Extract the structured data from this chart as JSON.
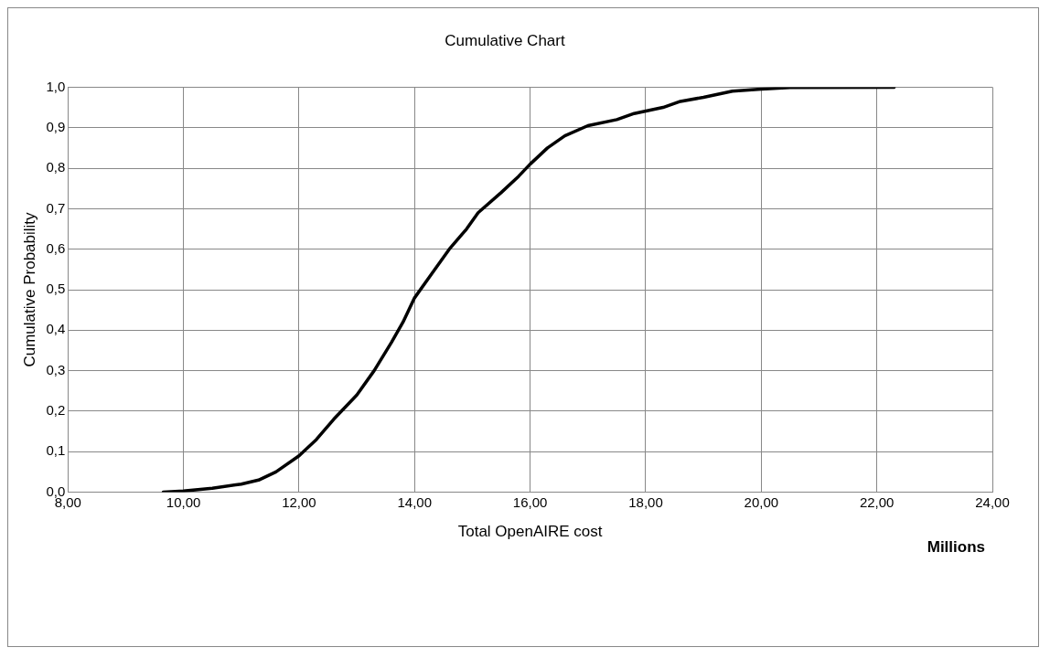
{
  "chart_data": {
    "type": "line",
    "title": "Cumulative Chart",
    "xlabel": "Total OpenAIRE cost",
    "ylabel": "Cumulative Probability",
    "annotations": [
      "Millions"
    ],
    "x": [
      9.65,
      10.0,
      10.5,
      11.0,
      11.3,
      11.6,
      12.0,
      12.3,
      12.6,
      12.8,
      13.0,
      13.3,
      13.6,
      13.8,
      14.0,
      14.3,
      14.6,
      14.9,
      15.1,
      15.5,
      15.8,
      16.0,
      16.3,
      16.6,
      17.0,
      17.5,
      17.8,
      18.3,
      18.6,
      19.0,
      19.5,
      20.0,
      20.5,
      22.3
    ],
    "series": [
      {
        "color": "#000000",
        "values": [
          0,
          0.003,
          0.01,
          0.02,
          0.03,
          0.05,
          0.09,
          0.13,
          0.18,
          0.21,
          0.24,
          0.3,
          0.37,
          0.42,
          0.48,
          0.54,
          0.6,
          0.65,
          0.69,
          0.74,
          0.78,
          0.81,
          0.85,
          0.88,
          0.905,
          0.92,
          0.935,
          0.95,
          0.965,
          0.975,
          0.99,
          0.995,
          0.999,
          1.0
        ]
      }
    ],
    "xlim": [
      8,
      24
    ],
    "xticks": [
      {
        "value": 8,
        "label": "8,00"
      },
      {
        "value": 10,
        "label": "10,00"
      },
      {
        "value": 12,
        "label": "12,00"
      },
      {
        "value": 14,
        "label": "14,00"
      },
      {
        "value": 16,
        "label": "16,00"
      },
      {
        "value": 18,
        "label": "18,00"
      },
      {
        "value": 20,
        "label": "20,00"
      },
      {
        "value": 22,
        "label": "22,00"
      },
      {
        "value": 24,
        "label": "24,00"
      }
    ],
    "ylim": [
      0,
      1
    ],
    "yticks": [
      {
        "value": 0,
        "label": "0,0"
      },
      {
        "value": 0.1,
        "label": "0,1"
      },
      {
        "value": 0.2,
        "label": "0,2"
      },
      {
        "value": 0.3,
        "label": "0,3"
      },
      {
        "value": 0.4,
        "label": "0,4"
      },
      {
        "value": 0.5,
        "label": "0,5"
      },
      {
        "value": 0.6,
        "label": "0,6"
      },
      {
        "value": 0.7,
        "label": "0,7"
      },
      {
        "value": 0.8,
        "label": "0,8"
      },
      {
        "value": 0.9,
        "label": "0,9"
      },
      {
        "value": 1,
        "label": "1,0"
      }
    ],
    "grid": true,
    "legend": false,
    "marker": "none",
    "line_style": "solid"
  }
}
